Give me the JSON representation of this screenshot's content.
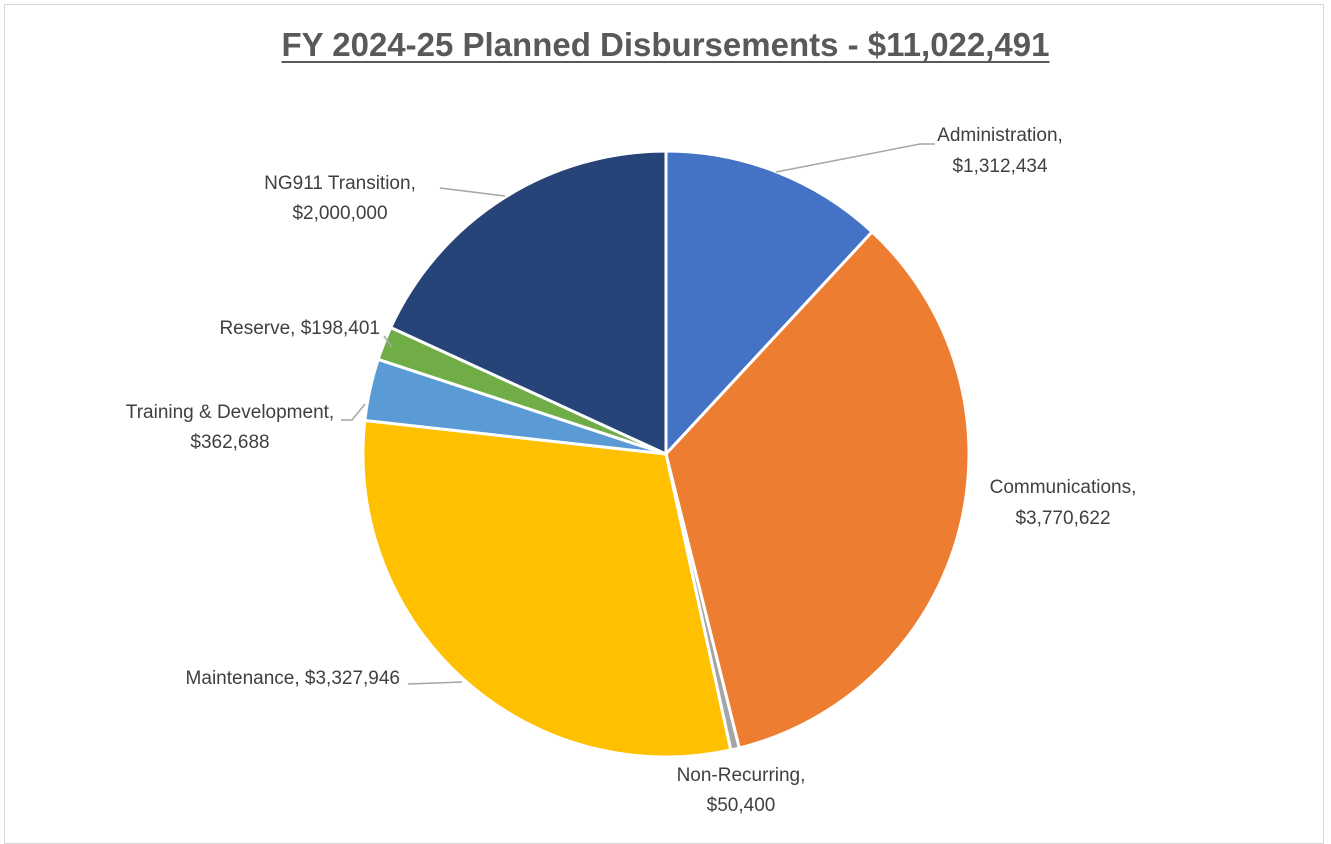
{
  "chart_data": {
    "type": "pie",
    "title": "FY 2024-25 Planned Disbursements - $11,022,491",
    "slices": [
      {
        "name": "Administration",
        "value": 1312434,
        "label": [
          "Administration,",
          "$1,312,434"
        ],
        "color": "#4472C4"
      },
      {
        "name": "Communications",
        "value": 3770622,
        "label": [
          "Communications,",
          "$3,770,622"
        ],
        "color": "#ED7D31"
      },
      {
        "name": "Non-Recurring",
        "value": 50400,
        "label": [
          "Non-Recurring,",
          "$50,400"
        ],
        "color": "#A5A5A5"
      },
      {
        "name": "Maintenance",
        "value": 3327946,
        "label": [
          "Maintenance, $3,327,946"
        ],
        "color": "#FFC000"
      },
      {
        "name": "Training & Development",
        "value": 362688,
        "label": [
          "Training & Development,",
          "$362,688"
        ],
        "color": "#5B9BD5"
      },
      {
        "name": "Reserve",
        "value": 198401,
        "label": [
          "Reserve, $198,401"
        ],
        "color": "#70AD47"
      },
      {
        "name": "NG911 Transition",
        "value": 2000000,
        "label": [
          "NG911 Transition,",
          "$2,000,000"
        ],
        "color": "#264478"
      }
    ],
    "legend": "none"
  }
}
